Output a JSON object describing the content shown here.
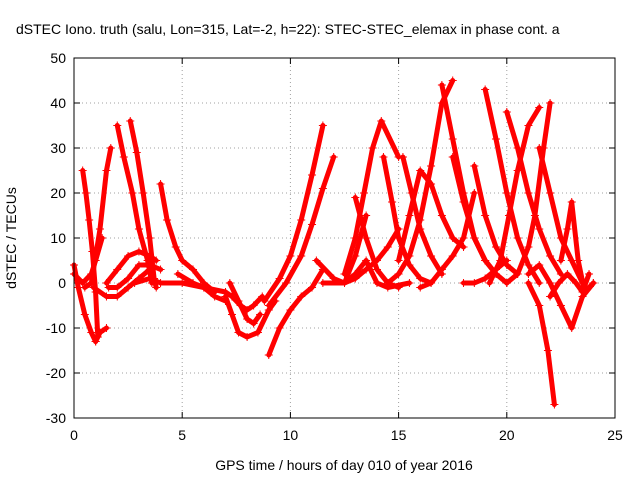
{
  "chart_data": {
    "type": "scatter",
    "title": "dSTEC Iono. truth (salu, Lon=315, Lat=-2, h=22): STEC-STEC_elemax in phase cont. a",
    "xlabel": "GPS time / hours of day 010 of year 2016",
    "ylabel": "dSTEC  / TECUs",
    "xlim": [
      0,
      25
    ],
    "ylim": [
      -30,
      50
    ],
    "xticks": [
      0,
      5,
      10,
      15,
      20,
      25
    ],
    "yticks": [
      -30,
      -20,
      -10,
      0,
      10,
      20,
      30,
      40,
      50
    ],
    "grid": true,
    "marker": "+",
    "color": "#ff0000",
    "series": [
      {
        "x": [
          0.4,
          0.55,
          0.7,
          0.85,
          1.0,
          1.1
        ],
        "y": [
          25,
          20,
          14,
          7,
          -2,
          -12
        ]
      },
      {
        "x": [
          0.0,
          0.2,
          0.5,
          0.8,
          1.0
        ],
        "y": [
          4,
          -1,
          -7,
          -11,
          -13
        ]
      },
      {
        "x": [
          1.0,
          1.2,
          1.5
        ],
        "y": [
          -13,
          -11,
          -10
        ]
      },
      {
        "x": [
          0.0,
          0.4,
          0.8,
          1.0,
          1.3
        ],
        "y": [
          2,
          0,
          2,
          5,
          10
        ]
      },
      {
        "x": [
          0.5,
          0.8,
          1.2,
          1.5,
          1.7
        ],
        "y": [
          -1,
          0,
          12,
          25,
          30
        ]
      },
      {
        "x": [
          1.6,
          2.0,
          2.5,
          3.0,
          3.5,
          4.0
        ],
        "y": [
          -1,
          -1,
          1,
          4,
          4,
          3
        ]
      },
      {
        "x": [
          0.9,
          1.5,
          2.0,
          2.5,
          3.0,
          3.5
        ],
        "y": [
          -1,
          -3,
          -3,
          -1,
          1,
          3
        ]
      },
      {
        "x": [
          1.5,
          2.0,
          2.5,
          3.0,
          3.5,
          3.8
        ],
        "y": [
          0,
          3,
          6,
          7,
          6,
          5
        ]
      },
      {
        "x": [
          2.0,
          2.3,
          2.7,
          3.0,
          3.4,
          3.6
        ],
        "y": [
          35,
          28,
          20,
          12,
          5,
          0
        ]
      },
      {
        "x": [
          2.6,
          2.9,
          3.2,
          3.5,
          3.7,
          3.8
        ],
        "y": [
          36,
          29,
          20,
          10,
          1,
          -1
        ]
      },
      {
        "x": [
          4.0,
          4.3,
          4.7,
          5.0,
          5.5,
          6.0,
          6.5
        ],
        "y": [
          22,
          14,
          8,
          5,
          3,
          0,
          -2
        ]
      },
      {
        "x": [
          2.8,
          3.5,
          4.0,
          5.0,
          6.0,
          7.0
        ],
        "y": [
          0,
          1,
          0,
          0,
          -1,
          -2
        ]
      },
      {
        "x": [
          4.8,
          5.5,
          6.0,
          6.5,
          7.0
        ],
        "y": [
          2,
          0,
          -1,
          -3,
          -4
        ]
      },
      {
        "x": [
          7.0,
          7.3,
          7.7,
          8.0,
          8.3,
          8.7
        ],
        "y": [
          -2,
          -3,
          -5,
          -6,
          -5,
          -3
        ]
      },
      {
        "x": [
          7.0,
          7.3,
          7.6,
          8.0,
          8.5,
          9.0,
          9.3
        ],
        "y": [
          -3,
          -7,
          -11,
          -12,
          -11,
          -6,
          -4
        ]
      },
      {
        "x": [
          7.2,
          7.6,
          8.0,
          8.3,
          8.6
        ],
        "y": [
          0,
          -4,
          -8,
          -9,
          -7
        ]
      },
      {
        "x": [
          9.0,
          9.5,
          10.0,
          10.5,
          11.0,
          11.5
        ],
        "y": [
          -16,
          -10,
          -6,
          -3,
          -1,
          3
        ]
      },
      {
        "x": [
          8.8,
          9.5,
          10.0,
          10.5,
          11.0,
          11.5
        ],
        "y": [
          -4,
          1,
          6,
          14,
          24,
          35
        ]
      },
      {
        "x": [
          9.0,
          9.8,
          10.5,
          11.0,
          11.5,
          12.0
        ],
        "y": [
          -5,
          0,
          6,
          13,
          21,
          28
        ]
      },
      {
        "x": [
          11.2,
          12.0,
          12.5,
          13.0,
          13.5
        ],
        "y": [
          5,
          1,
          0,
          6,
          15
        ]
      },
      {
        "x": [
          11.5,
          12.5,
          13.0,
          13.5,
          14.0,
          14.5,
          15.0
        ],
        "y": [
          0,
          0,
          1,
          3,
          5,
          8,
          12
        ]
      },
      {
        "x": [
          12.5,
          13.0,
          13.4,
          13.8,
          14.2,
          15.0
        ],
        "y": [
          2,
          10,
          20,
          30,
          36,
          28
        ]
      },
      {
        "x": [
          13.0,
          13.5,
          14.0,
          14.5,
          15.0
        ],
        "y": [
          19,
          10,
          3,
          0,
          -1
        ]
      },
      {
        "x": [
          12.5,
          13.0,
          13.5,
          14.0,
          14.5,
          15.5
        ],
        "y": [
          0,
          2,
          5,
          0,
          -1,
          0
        ]
      },
      {
        "x": [
          14.3,
          14.7,
          15.0,
          15.5,
          16.0,
          16.5
        ],
        "y": [
          28,
          18,
          10,
          4,
          1,
          0
        ]
      },
      {
        "x": [
          15.2,
          15.6,
          16.0,
          16.5,
          17.0
        ],
        "y": [
          28,
          20,
          12,
          6,
          2
        ]
      },
      {
        "x": [
          15.0,
          15.5,
          16.0,
          16.5,
          17.0,
          17.5,
          18.0
        ],
        "y": [
          5,
          15,
          25,
          22,
          15,
          10,
          8
        ]
      },
      {
        "x": [
          14.5,
          15.0,
          15.5,
          16.0,
          16.5,
          17.0,
          17.5
        ],
        "y": [
          0,
          2,
          6,
          14,
          26,
          40,
          45
        ]
      },
      {
        "x": [
          16.0,
          16.5,
          17.0,
          17.5,
          18.0,
          18.5
        ],
        "y": [
          -1,
          0,
          3,
          6,
          10,
          20
        ]
      },
      {
        "x": [
          17.0,
          17.5,
          18.0,
          18.5,
          19.0,
          19.5
        ],
        "y": [
          44,
          32,
          20,
          10,
          5,
          2
        ]
      },
      {
        "x": [
          17.5,
          18.0,
          18.5,
          19.0,
          19.5,
          20.0
        ],
        "y": [
          28,
          18,
          10,
          5,
          2,
          0
        ]
      },
      {
        "x": [
          18.5,
          19.0,
          19.5,
          20.0,
          20.5
        ],
        "y": [
          26,
          15,
          8,
          4,
          2
        ]
      },
      {
        "x": [
          18.0,
          18.5,
          19.0,
          19.5,
          20.0
        ],
        "y": [
          0,
          0,
          1,
          3,
          5
        ]
      },
      {
        "x": [
          19.0,
          19.5,
          20.0,
          20.5,
          21.0,
          21.5
        ],
        "y": [
          43,
          32,
          20,
          10,
          4,
          0
        ]
      },
      {
        "x": [
          19.2,
          19.7,
          20.1,
          20.5,
          21.0,
          21.5
        ],
        "y": [
          0,
          5,
          15,
          25,
          35,
          39
        ]
      },
      {
        "x": [
          20.0,
          20.5,
          21.0,
          21.5,
          22.0,
          22.5
        ],
        "y": [
          38,
          30,
          20,
          12,
          6,
          2
        ]
      },
      {
        "x": [
          20.0,
          20.5,
          21.0,
          21.3,
          21.7,
          22.0
        ],
        "y": [
          0,
          2,
          8,
          15,
          30,
          40
        ]
      },
      {
        "x": [
          21.0,
          21.5,
          21.9,
          22.2
        ],
        "y": [
          0,
          -5,
          -15,
          -27
        ]
      },
      {
        "x": [
          21.5,
          22.0,
          22.5,
          23.0,
          23.5
        ],
        "y": [
          30,
          20,
          10,
          5,
          0
        ]
      },
      {
        "x": [
          21.0,
          21.5,
          22.0,
          22.5,
          23.0,
          23.5,
          24.0
        ],
        "y": [
          2,
          4,
          0,
          -5,
          -10,
          -3,
          0
        ]
      },
      {
        "x": [
          22.5,
          22.8,
          23.0,
          23.3,
          23.6,
          24.0
        ],
        "y": [
          5,
          12,
          18,
          5,
          -2,
          0
        ]
      },
      {
        "x": [
          22.0,
          22.4,
          22.8,
          23.2,
          23.5,
          23.8
        ],
        "y": [
          -3,
          0,
          2,
          0,
          -2,
          2
        ]
      }
    ]
  }
}
